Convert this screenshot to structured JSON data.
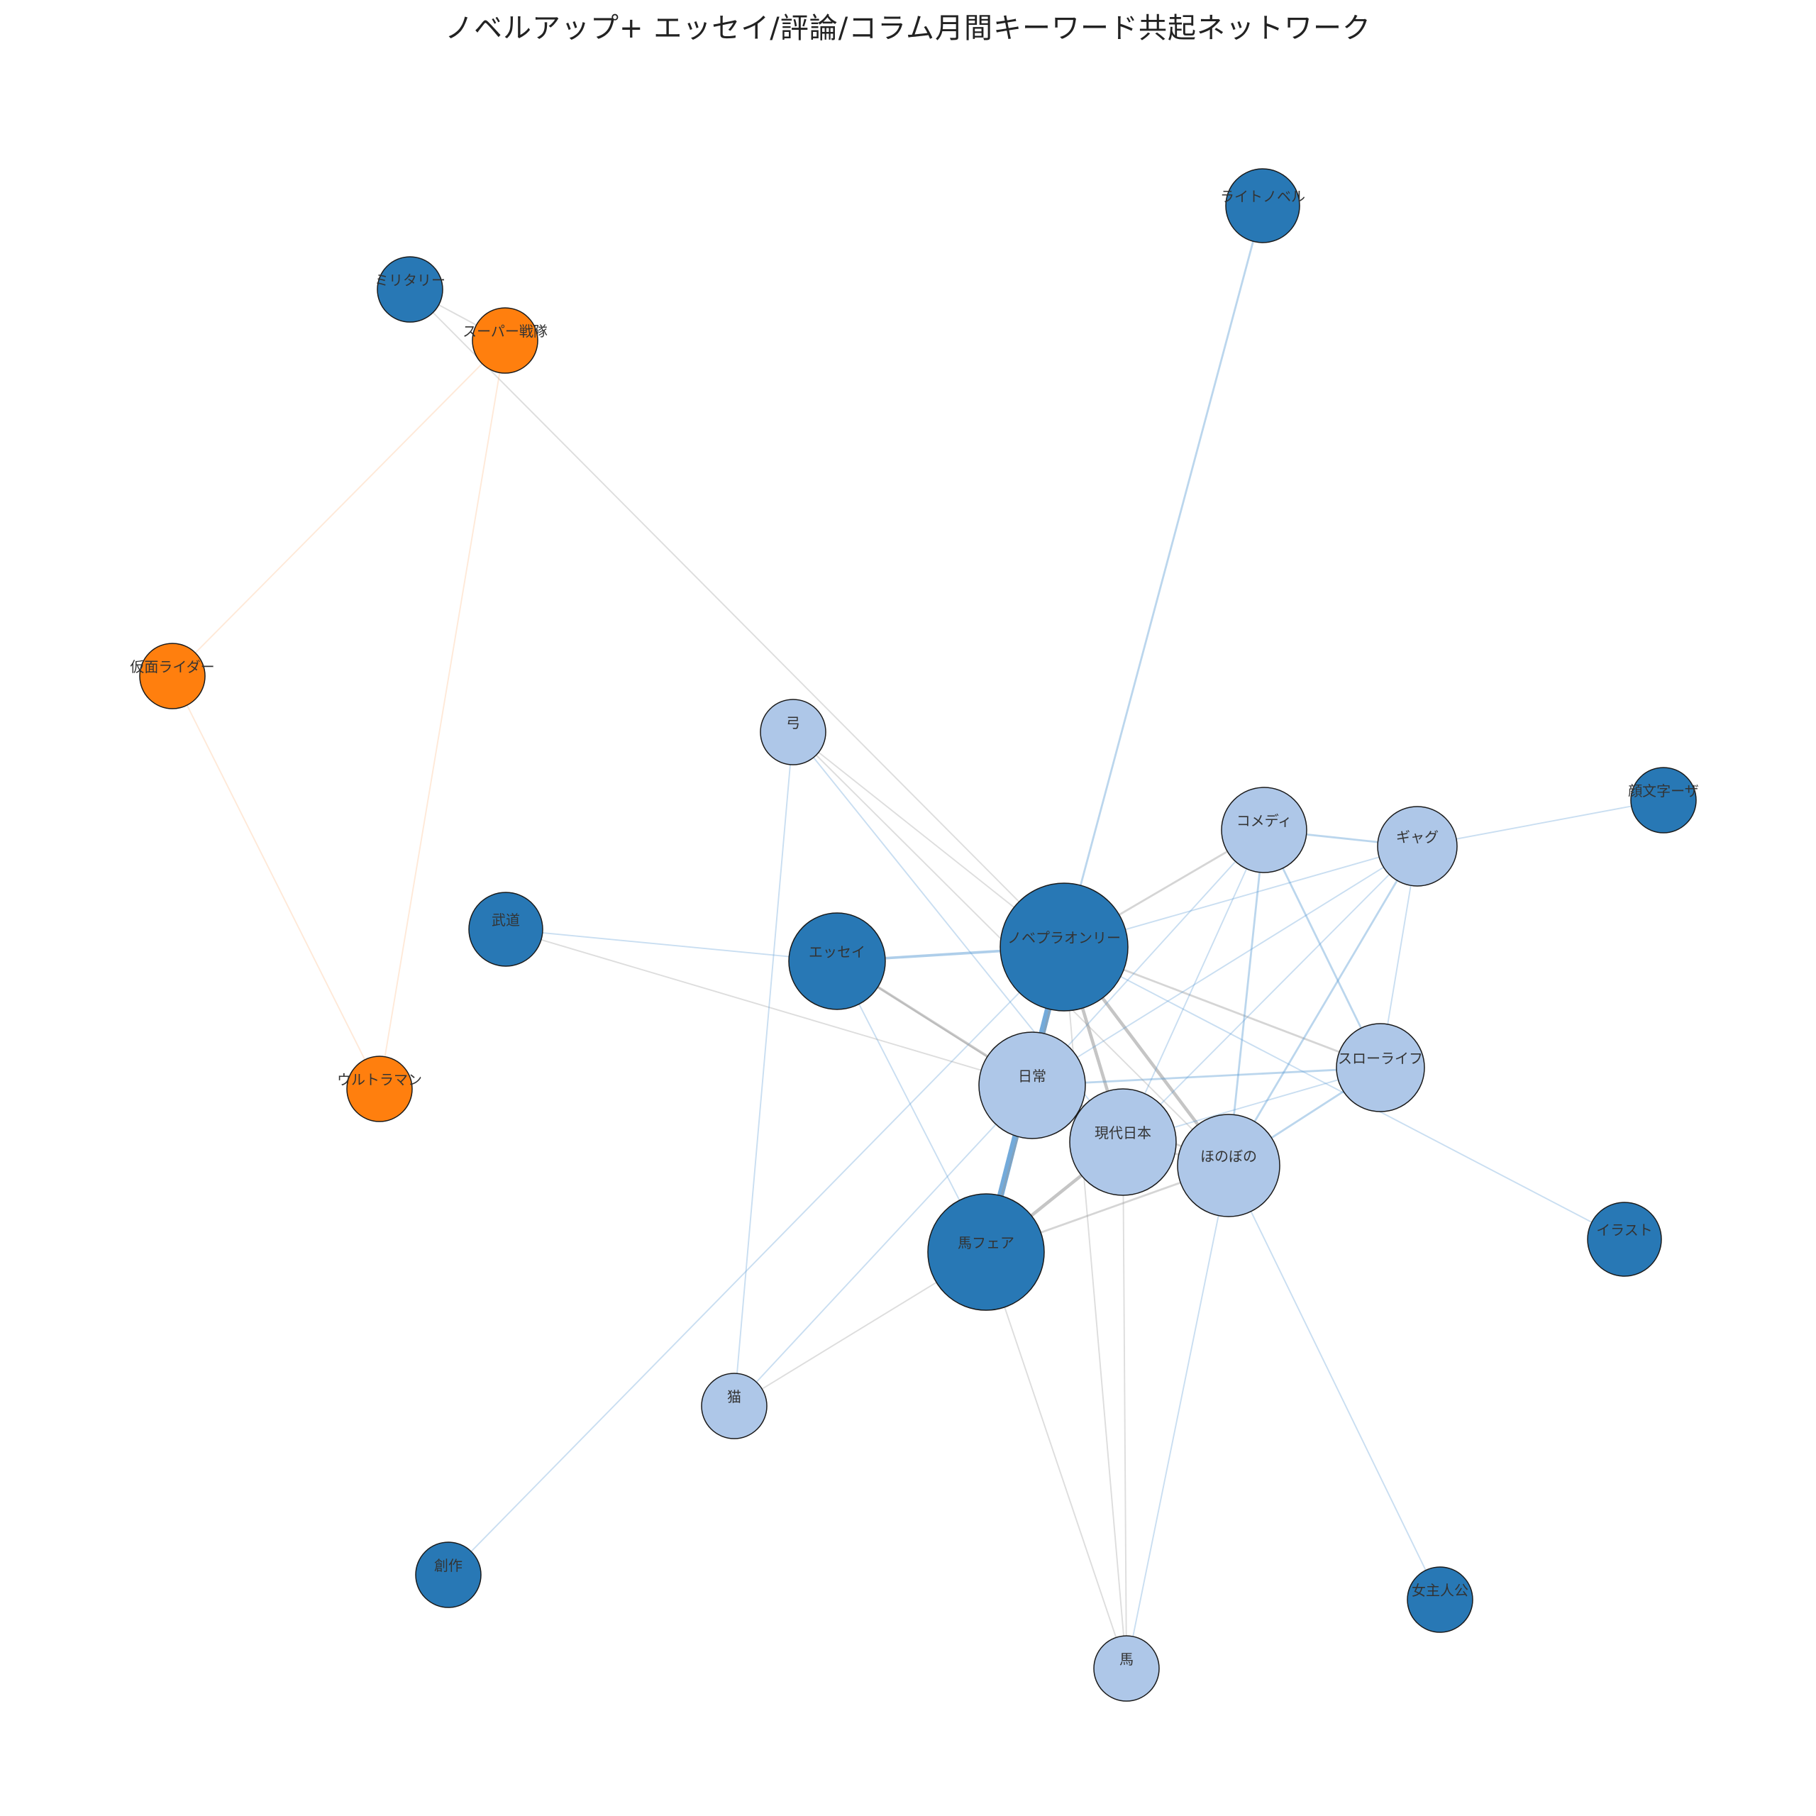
{
  "title": "ノベルアップ+ エッセイ/評論/コラム月間キーワード共起ネットワーク",
  "colors": {
    "cluster_dark": "#2878b5",
    "cluster_light": "#aec7e8",
    "cluster_orange": "#ff7f0e",
    "edge_gray": "#999999",
    "edge_blue": "#5a9bd4",
    "edge_orange": "#ffbb88",
    "node_stroke": "#1a1a1a"
  },
  "nodes": [
    {
      "id": "novel_only",
      "label": "ノベプラオンリー",
      "group": "dark",
      "weight": 10
    },
    {
      "id": "uma_fair",
      "label": "馬フェア",
      "group": "dark",
      "weight": 9
    },
    {
      "id": "essay",
      "label": "エッセイ",
      "group": "dark",
      "weight": 6
    },
    {
      "id": "light_novel",
      "label": "ライトノベル",
      "group": "dark",
      "weight": 3
    },
    {
      "id": "military",
      "label": "ミリタリー",
      "group": "dark",
      "weight": 3
    },
    {
      "id": "budo",
      "label": "武道",
      "group": "dark",
      "weight": 3
    },
    {
      "id": "kaomoji",
      "label": "顔文字ーザ",
      "group": "dark",
      "weight": 3
    },
    {
      "id": "illust",
      "label": "イラスト",
      "group": "dark",
      "weight": 3
    },
    {
      "id": "joshujinko",
      "label": "女主人公",
      "group": "dark",
      "weight": 2
    },
    {
      "id": "sosaku",
      "label": "創作",
      "group": "dark",
      "weight": 2
    },
    {
      "id": "nichijo",
      "label": "日常",
      "group": "light",
      "weight": 8
    },
    {
      "id": "gendai",
      "label": "現代日本",
      "group": "light",
      "weight": 8
    },
    {
      "id": "honobono",
      "label": "ほのぼの",
      "group": "light",
      "weight": 7
    },
    {
      "id": "comedy",
      "label": "コメディ",
      "group": "light",
      "weight": 5
    },
    {
      "id": "gag",
      "label": "ギャグ",
      "group": "light",
      "weight": 4
    },
    {
      "id": "slowlife",
      "label": "スローライフ",
      "group": "light",
      "weight": 5
    },
    {
      "id": "yumi",
      "label": "弓",
      "group": "light",
      "weight": 2
    },
    {
      "id": "neko",
      "label": "猫",
      "group": "light",
      "weight": 2
    },
    {
      "id": "uma",
      "label": "馬",
      "group": "light",
      "weight": 2
    },
    {
      "id": "super_sentai",
      "label": "スーパー戦隊",
      "group": "orange",
      "weight": 2
    },
    {
      "id": "kamen_rider",
      "label": "仮面ライダー",
      "group": "orange",
      "weight": 2
    },
    {
      "id": "ultraman",
      "label": "ウルトラマン",
      "group": "orange",
      "weight": 2
    }
  ],
  "edges": [
    {
      "source": "novel_only",
      "target": "uma_fair",
      "weight": 9,
      "tone": "blue"
    },
    {
      "source": "novel_only",
      "target": "essay",
      "weight": 3,
      "tone": "blue"
    },
    {
      "source": "novel_only",
      "target": "light_novel",
      "weight": 2,
      "tone": "blue"
    },
    {
      "source": "novel_only",
      "target": "gendai",
      "weight": 4,
      "tone": "gray"
    },
    {
      "source": "novel_only",
      "target": "honobono",
      "weight": 4,
      "tone": "gray"
    },
    {
      "source": "novel_only",
      "target": "comedy",
      "weight": 2,
      "tone": "gray"
    },
    {
      "source": "novel_only",
      "target": "slowlife",
      "weight": 2,
      "tone": "gray"
    },
    {
      "source": "novel_only",
      "target": "nichijo",
      "weight": 2,
      "tone": "gray"
    },
    {
      "source": "novel_only",
      "target": "gag",
      "weight": 1,
      "tone": "blue"
    },
    {
      "source": "novel_only",
      "target": "illust",
      "weight": 1,
      "tone": "blue"
    },
    {
      "source": "novel_only",
      "target": "military",
      "weight": 1,
      "tone": "gray"
    },
    {
      "source": "novel_only",
      "target": "sosaku",
      "weight": 1,
      "tone": "blue"
    },
    {
      "source": "novel_only",
      "target": "uma",
      "weight": 1,
      "tone": "gray"
    },
    {
      "source": "novel_only",
      "target": "yumi",
      "weight": 1,
      "tone": "gray"
    },
    {
      "source": "essay",
      "target": "budo",
      "weight": 1,
      "tone": "blue"
    },
    {
      "source": "essay",
      "target": "gendai",
      "weight": 3,
      "tone": "gray"
    },
    {
      "source": "essay",
      "target": "uma_fair",
      "weight": 1,
      "tone": "blue"
    },
    {
      "source": "essay",
      "target": "nichijo",
      "weight": 1,
      "tone": "gray"
    },
    {
      "source": "budo",
      "target": "nichijo",
      "weight": 1,
      "tone": "gray"
    },
    {
      "source": "uma_fair",
      "target": "gendai",
      "weight": 4,
      "tone": "gray"
    },
    {
      "source": "uma_fair",
      "target": "honobono",
      "weight": 2,
      "tone": "gray"
    },
    {
      "source": "uma_fair",
      "target": "nichijo",
      "weight": 2,
      "tone": "gray"
    },
    {
      "source": "uma_fair",
      "target": "uma",
      "weight": 1,
      "tone": "gray"
    },
    {
      "source": "uma_fair",
      "target": "neko",
      "weight": 1,
      "tone": "gray"
    },
    {
      "source": "nichijo",
      "target": "gendai",
      "weight": 2,
      "tone": "gray"
    },
    {
      "source": "nichijo",
      "target": "honobono",
      "weight": 2,
      "tone": "gray"
    },
    {
      "source": "nichijo",
      "target": "slowlife",
      "weight": 2,
      "tone": "blue"
    },
    {
      "source": "nichijo",
      "target": "comedy",
      "weight": 1,
      "tone": "blue"
    },
    {
      "source": "nichijo",
      "target": "gag",
      "weight": 1,
      "tone": "blue"
    },
    {
      "source": "nichijo",
      "target": "neko",
      "weight": 1,
      "tone": "blue"
    },
    {
      "source": "gendai",
      "target": "honobono",
      "weight": 2,
      "tone": "gray"
    },
    {
      "source": "gendai",
      "target": "comedy",
      "weight": 1,
      "tone": "blue"
    },
    {
      "source": "gendai",
      "target": "gag",
      "weight": 1,
      "tone": "blue"
    },
    {
      "source": "gendai",
      "target": "slowlife",
      "weight": 1,
      "tone": "blue"
    },
    {
      "source": "gendai",
      "target": "uma",
      "weight": 1,
      "tone": "gray"
    },
    {
      "source": "honobono",
      "target": "comedy",
      "weight": 2,
      "tone": "blue"
    },
    {
      "source": "honobono",
      "target": "gag",
      "weight": 2,
      "tone": "blue"
    },
    {
      "source": "honobono",
      "target": "slowlife",
      "weight": 2,
      "tone": "blue"
    },
    {
      "source": "honobono",
      "target": "joshujinko",
      "weight": 1,
      "tone": "blue"
    },
    {
      "source": "honobono",
      "target": "uma",
      "weight": 1,
      "tone": "blue"
    },
    {
      "source": "comedy",
      "target": "gag",
      "weight": 2,
      "tone": "blue"
    },
    {
      "source": "comedy",
      "target": "slowlife",
      "weight": 2,
      "tone": "blue"
    },
    {
      "source": "gag",
      "target": "slowlife",
      "weight": 1,
      "tone": "blue"
    },
    {
      "source": "gag",
      "target": "kaomoji",
      "weight": 1,
      "tone": "blue"
    },
    {
      "source": "yumi",
      "target": "neko",
      "weight": 1,
      "tone": "blue"
    },
    {
      "source": "yumi",
      "target": "honobono",
      "weight": 1,
      "tone": "gray"
    },
    {
      "source": "yumi",
      "target": "gendai",
      "weight": 1,
      "tone": "blue"
    },
    {
      "source": "military",
      "target": "super_sentai",
      "weight": 1,
      "tone": "gray"
    },
    {
      "source": "super_sentai",
      "target": "kamen_rider",
      "weight": 1,
      "tone": "orange"
    },
    {
      "source": "super_sentai",
      "target": "ultraman",
      "weight": 1,
      "tone": "orange"
    },
    {
      "source": "kamen_rider",
      "target": "ultraman",
      "weight": 1,
      "tone": "orange"
    }
  ]
}
